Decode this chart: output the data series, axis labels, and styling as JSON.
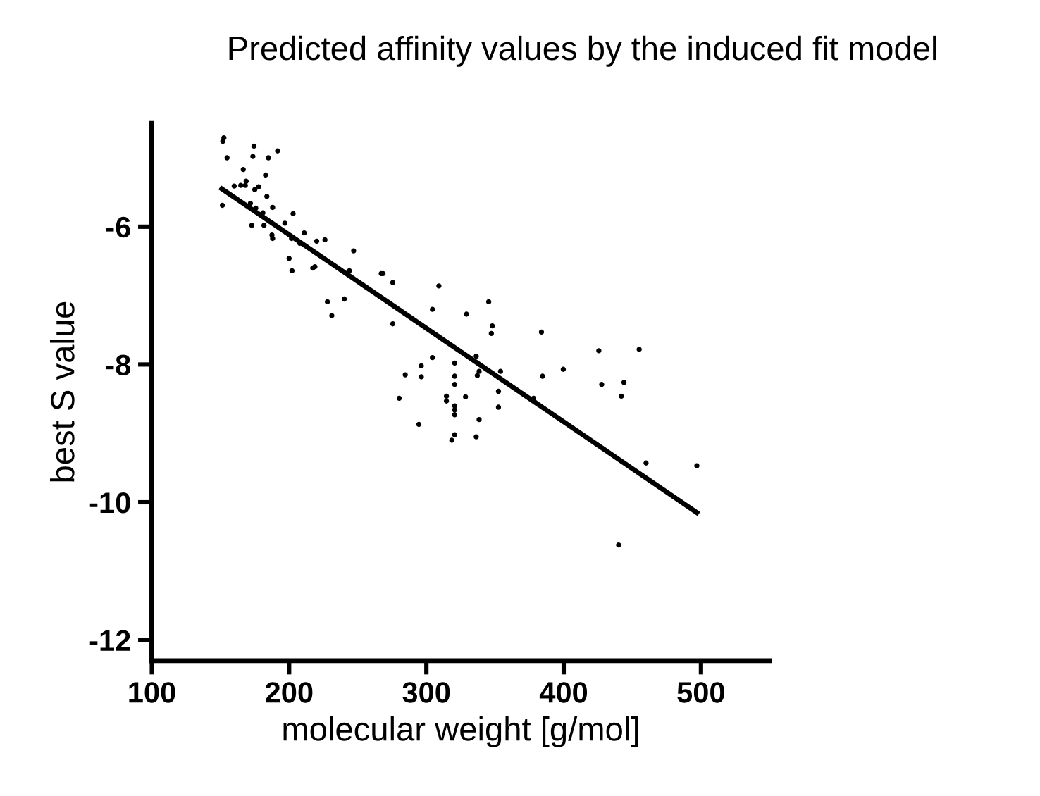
{
  "chart_data": {
    "type": "scatter",
    "title": "Predicted affinity values by the induced fit model",
    "xlabel": "molecular weight [g/mol]",
    "ylabel": "best S value",
    "xlim": [
      100,
      550
    ],
    "ylim": [
      -12.3,
      -4.5
    ],
    "xticks": [
      100,
      200,
      300,
      400,
      500
    ],
    "yticks": [
      {
        "value": -6,
        "label": "-6"
      },
      {
        "value": -8,
        "label": "-8"
      },
      {
        "value": -10,
        "label": "-10"
      },
      {
        "value": -12,
        "label": "-12"
      }
    ],
    "grid": false,
    "marker": "circle",
    "series": [
      {
        "color": "#000000",
        "x": [
          151.7,
          152.5,
          154.8,
          151.4,
          160,
          164.8,
          166.6,
          168.7,
          168.1,
          174.4,
          173.6,
          175,
          177.8,
          182.8,
          184.9,
          191.6,
          171.8,
          175.7,
          180.9,
          183.8,
          188,
          172.8,
          181.7,
          187.5,
          188,
          196.9,
          202.9,
          201.8,
          200,
          202.1,
          207.8,
          211,
          220.1,
          226.1,
          217.2,
          218.8,
          227.9,
          231.1,
          240.2,
          243.9,
          247,
          267.1,
          268.4,
          275.5,
          275.5,
          280.2,
          284.6,
          294.5,
          296.3,
          296.3,
          304.4,
          304.4,
          309.1,
          314.6,
          314.6,
          318.5,
          320.6,
          320.6,
          320.6,
          320.6,
          320.6,
          320.6,
          320.6,
          328.5,
          329.2,
          336.3,
          337.1,
          338.4,
          338.4,
          336.3,
          345.4,
          347.3,
          348,
          352.5,
          352.5,
          354,
          378.1,
          383.8,
          384.6,
          399.7,
          425.6,
          427.7,
          442,
          443.9,
          440,
          455,
          460,
          497
        ],
        "values": [
          -4.76,
          -4.71,
          -5.0,
          -5.69,
          -5.41,
          -5.4,
          -5.17,
          -5.34,
          -5.4,
          -4.83,
          -4.98,
          -5.46,
          -5.42,
          -5.25,
          -5.0,
          -4.9,
          -5.66,
          -5.73,
          -5.8,
          -5.56,
          -5.72,
          -5.98,
          -5.98,
          -6.12,
          -6.17,
          -5.95,
          -5.81,
          -6.17,
          -6.46,
          -6.64,
          -6.24,
          -6.09,
          -6.21,
          -6.19,
          -6.6,
          -6.58,
          -7.09,
          -7.29,
          -7.05,
          -6.64,
          -6.35,
          -6.68,
          -6.68,
          -6.81,
          -7.41,
          -8.49,
          -8.15,
          -8.87,
          -8.02,
          -8.18,
          -7.2,
          -7.9,
          -6.86,
          -8.46,
          -8.53,
          -9.1,
          -9.02,
          -7.98,
          -8.17,
          -8.29,
          -8.6,
          -8.66,
          -8.73,
          -8.47,
          -7.27,
          -7.88,
          -8.16,
          -8.1,
          -8.8,
          -9.05,
          -7.09,
          -7.55,
          -7.44,
          -8.39,
          -8.62,
          -8.1,
          -8.49,
          -7.53,
          -8.17,
          -8.07,
          -7.8,
          -8.29,
          -8.46,
          -8.26,
          -10.62,
          -7.78,
          -9.43,
          -9.47
        ]
      },
      {
        "type": "line",
        "color": "#000000",
        "x": [
          151,
          497
        ],
        "values": [
          -5.45,
          -10.15
        ],
        "marker": "none",
        "line_style": "solid"
      }
    ]
  }
}
